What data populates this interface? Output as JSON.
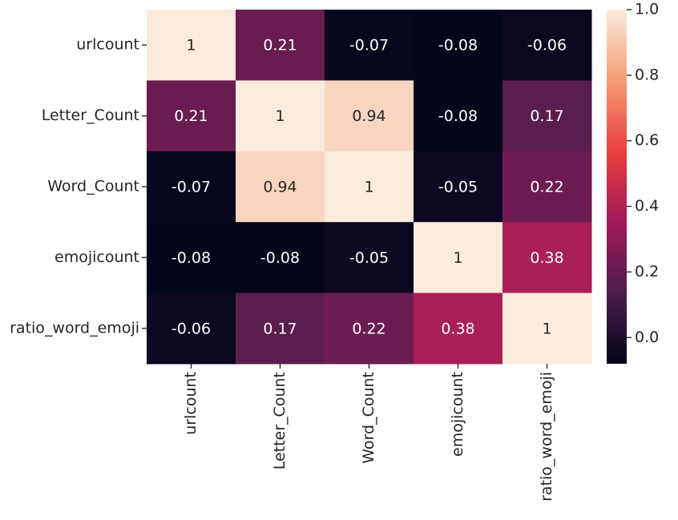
{
  "chart_data": {
    "type": "heatmap",
    "title": "",
    "xlabel": "",
    "ylabel": "",
    "rows": [
      "urlcount",
      "Letter_Count",
      "Word_Count",
      "emojicount",
      "ratio_word_emoji"
    ],
    "columns": [
      "urlcount",
      "Letter_Count",
      "Word_Count",
      "emojicount",
      "ratio_word_emoji"
    ],
    "values": [
      [
        1,
        0.21,
        -0.07,
        -0.08,
        -0.06
      ],
      [
        0.21,
        1,
        0.94,
        -0.08,
        0.17
      ],
      [
        -0.07,
        0.94,
        1,
        -0.05,
        0.22
      ],
      [
        -0.08,
        -0.08,
        -0.05,
        1,
        0.38
      ],
      [
        -0.06,
        0.17,
        0.22,
        0.38,
        1
      ]
    ],
    "cell_labels": [
      [
        "1",
        "0.21",
        "-0.07",
        "-0.08",
        "-0.06"
      ],
      [
        "0.21",
        "1",
        "0.94",
        "-0.08",
        "0.17"
      ],
      [
        "-0.07",
        "0.94",
        "1",
        "-0.05",
        "0.22"
      ],
      [
        "-0.08",
        "-0.08",
        "-0.05",
        "1",
        "0.38"
      ],
      [
        "-0.06",
        "0.17",
        "0.22",
        "0.38",
        "1"
      ]
    ],
    "colorbar": {
      "vmin": -0.08,
      "vmax": 1.0,
      "ticks": [
        0.0,
        0.2,
        0.4,
        0.6,
        0.8,
        1.0
      ],
      "tick_labels": [
        "0.0",
        "0.2",
        "0.4",
        "0.6",
        "0.8",
        "1.0"
      ],
      "colormap": "rocket",
      "colors": [
        "#03051a",
        "#4c1d4b",
        "#a11a5b",
        "#e83f3f",
        "#f69c73",
        "#faebdd"
      ]
    },
    "legend": "colorbar-right",
    "grid": false
  }
}
